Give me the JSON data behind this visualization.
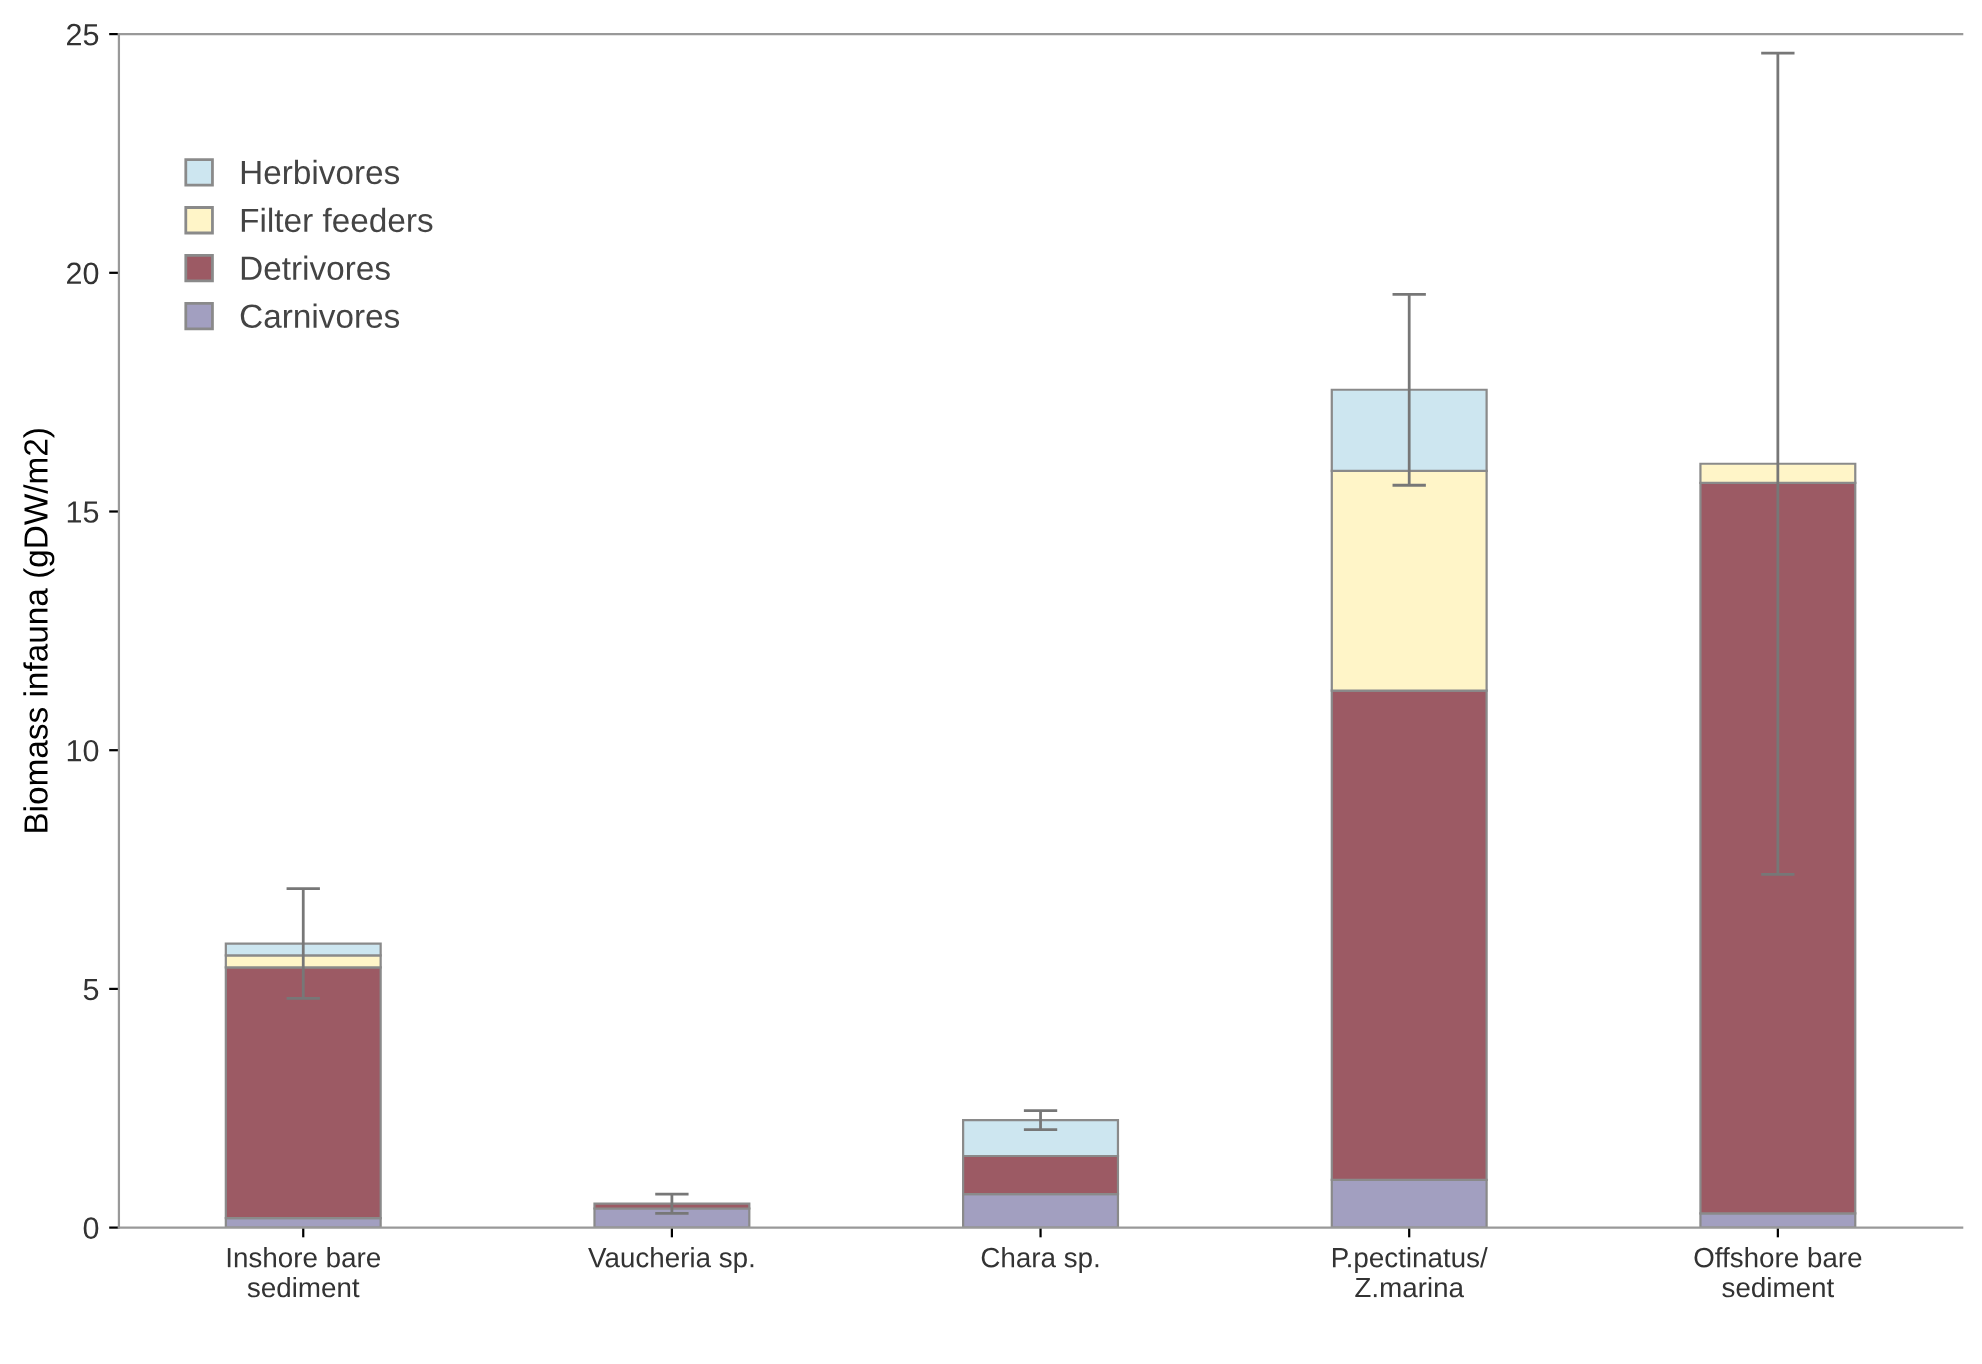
{
  "chart_data": {
    "type": "bar",
    "stacked": true,
    "ylabel": "Biomass infauna (gDW/m2)",
    "categories": [
      "Inshore bare\nsediment",
      "Vaucheria sp.",
      "Chara sp.",
      "P.pectinatus/\nZ.marina",
      "Offshore bare\nsediment"
    ],
    "series": [
      {
        "name": "Carnivores",
        "color": "#a29fc0",
        "values": [
          0.2,
          0.4,
          0.7,
          1.0,
          0.3
        ]
      },
      {
        "name": "Detrivores",
        "color": "#9c5a64",
        "values": [
          5.25,
          0.1,
          0.8,
          10.25,
          15.3
        ]
      },
      {
        "name": "Filter feeders",
        "color": "#fff5c8",
        "values": [
          0.25,
          0.0,
          0.0,
          4.6,
          0.4
        ]
      },
      {
        "name": "Herbivores",
        "color": "#cde6f0",
        "values": [
          0.25,
          0.0,
          0.75,
          1.7,
          0.0
        ],
        "errors": [
          1.15,
          0.2,
          0.2,
          2.0,
          8.6
        ]
      }
    ],
    "ylim": [
      0,
      25
    ],
    "yticks": [
      0,
      5,
      10,
      15,
      20,
      25
    ],
    "grid": false,
    "legend": "top left"
  }
}
